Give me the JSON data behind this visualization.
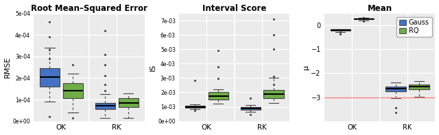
{
  "titles": [
    "Root Mean–Squared Error",
    "Interval Score",
    "Mean"
  ],
  "ylabels": [
    "RMSE",
    "IS",
    "μ"
  ],
  "xlabels": [
    "OK",
    "RK"
  ],
  "legend_labels": [
    "Gauss",
    "RQ"
  ],
  "colors": [
    "#4472C4",
    "#70AD47"
  ],
  "background_color": "#FFFFFF",
  "panel_bg": "#EBEBEB",
  "rmse": {
    "ok_gauss": {
      "q1": 0.00016,
      "med": 0.000205,
      "q3": 0.000245,
      "whislo": 9e-05,
      "whishi": 0.00034,
      "fliers_hi": [
        0.00046,
        0.00039,
        0.00033,
        0.00029
      ],
      "fliers_lo": [
        2e-05
      ]
    },
    "ok_rq": {
      "q1": 0.000105,
      "med": 0.00014,
      "q3": 0.000175,
      "whislo": 4e-05,
      "whishi": 0.00022,
      "fliers_hi": [
        0.00026
      ],
      "fliers_lo": [
        1.5e-05
      ]
    },
    "rk_gauss": {
      "q1": 5.5e-05,
      "med": 7e-05,
      "q3": 8.5e-05,
      "whislo": 1.5e-05,
      "whishi": 0.000125,
      "fliers_hi": [
        0.00042,
        0.00031,
        0.00026,
        0.00021,
        0.00017,
        0.00014
      ],
      "fliers_lo": []
    },
    "rk_rq": {
      "q1": 6.5e-05,
      "med": 8.5e-05,
      "q3": 0.000105,
      "whislo": 1.5e-05,
      "whishi": 0.00013,
      "fliers_hi": [],
      "fliers_lo": []
    },
    "ylim": [
      0,
      0.0005
    ],
    "yticks": [
      0,
      0.0001,
      0.0002,
      0.0003,
      0.0004,
      0.0005
    ],
    "ytick_labels": [
      "0e+00",
      "1e-04",
      "2e-04",
      "3e-04",
      "4e-04",
      "5e-04"
    ]
  },
  "is": {
    "ok_gauss": {
      "q1": 0.00095,
      "med": 0.001,
      "q3": 0.00105,
      "whislo": 0.00085,
      "whishi": 0.00115,
      "fliers_hi": [
        0.00285
      ],
      "fliers_lo": [
        0.00075
      ]
    },
    "ok_rq": {
      "q1": 0.0015,
      "med": 0.00175,
      "q3": 0.002,
      "whislo": 0.0012,
      "whishi": 0.0022,
      "fliers_hi": [
        0.0049,
        0.0038,
        0.00295
      ],
      "fliers_lo": []
    },
    "rk_gauss": {
      "q1": 0.0008,
      "med": 0.00088,
      "q3": 0.00098,
      "whislo": 0.00065,
      "whishi": 0.0011,
      "fliers_hi": [
        0.0016
      ],
      "fliers_lo": [
        0.00045
      ]
    },
    "rk_rq": {
      "q1": 0.0016,
      "med": 0.0019,
      "q3": 0.00215,
      "whislo": 0.00125,
      "whishi": 0.003,
      "fliers_hi": [
        0.0071,
        0.006,
        0.005,
        0.0031,
        0.00255
      ],
      "fliers_lo": []
    },
    "ylim": [
      0,
      0.0075
    ],
    "yticks": [
      0,
      0.001,
      0.002,
      0.003,
      0.004,
      0.005,
      0.006,
      0.007
    ],
    "ytick_labels": [
      "0e+00",
      "1e-03",
      "2e-03",
      "3e-03",
      "4e-03",
      "5e-03",
      "6e-03",
      "7e-03"
    ]
  },
  "mean": {
    "ok_gauss": {
      "q1": -0.215,
      "med": -0.195,
      "q3": -0.175,
      "whislo": -0.275,
      "whishi": -0.155,
      "fliers_hi": [],
      "fliers_lo": [
        -0.36,
        -0.29
      ]
    },
    "ok_rq": {
      "q1": 0.255,
      "med": 0.275,
      "q3": 0.295,
      "whislo": 0.21,
      "whishi": 0.315,
      "fliers_hi": [
        0.335
      ],
      "fliers_lo": [
        0.175
      ]
    },
    "rk_gauss": {
      "q1": -2.77,
      "med": -2.65,
      "q3": -2.55,
      "whislo": -3.05,
      "whishi": -2.38,
      "fliers_hi": [],
      "fliers_lo": [
        -3.45,
        -3.65
      ]
    },
    "rk_rq": {
      "q1": -2.68,
      "med": -2.57,
      "q3": -2.47,
      "whislo": -2.98,
      "whishi": -2.33,
      "fliers_hi": [],
      "fliers_lo": []
    },
    "ylim": [
      -4.0,
      0.5
    ],
    "yticks": [
      -3,
      -2,
      -1,
      0
    ],
    "hline": -3.0
  }
}
